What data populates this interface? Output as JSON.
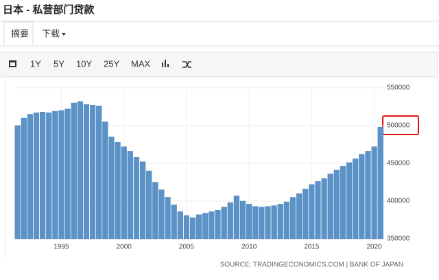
{
  "header": {
    "title": "日本 - 私营部门贷款"
  },
  "tabs": [
    "摘要",
    "下载"
  ],
  "toolbar": [
    "1Y",
    "5Y",
    "10Y",
    "25Y",
    "MAX"
  ],
  "source": "SOURCE: TRADINGECONOMICS.COM | BANK OF JAPAN",
  "chart_data": {
    "type": "bar",
    "color": "#5b93c9",
    "grid": true,
    "x": [
      1991.5,
      1992,
      1992.5,
      1993,
      1993.5,
      1994,
      1994.5,
      1995,
      1995.5,
      1996,
      1996.5,
      1997,
      1997.5,
      1998,
      1998.5,
      1999,
      1999.5,
      2000,
      2000.5,
      2001,
      2001.5,
      2002,
      2002.5,
      2003,
      2003.5,
      2004,
      2004.5,
      2005,
      2005.5,
      2006,
      2006.5,
      2007,
      2007.5,
      2008,
      2008.5,
      2009,
      2009.5,
      2010,
      2010.5,
      2011,
      2011.5,
      2012,
      2012.5,
      2013,
      2013.5,
      2014,
      2014.5,
      2015,
      2015.5,
      2016,
      2016.5,
      2017,
      2017.5,
      2018,
      2018.5,
      2019,
      2019.5,
      2020,
      2020.5
    ],
    "values": [
      500000,
      510000,
      515000,
      517000,
      518000,
      517000,
      519000,
      520000,
      522000,
      530000,
      532000,
      528000,
      527000,
      526000,
      505000,
      485000,
      478000,
      472000,
      466000,
      458000,
      452000,
      440000,
      425000,
      415000,
      405000,
      395000,
      386000,
      381000,
      378000,
      382000,
      384000,
      386000,
      388000,
      392000,
      398000,
      407000,
      400000,
      396000,
      393000,
      392000,
      393000,
      394000,
      396000,
      399000,
      405000,
      410000,
      416000,
      422000,
      426000,
      430000,
      436000,
      441000,
      446000,
      451000,
      456000,
      462000,
      466000,
      472000,
      498000
    ],
    "xlim": [
      1991.3,
      2020.9
    ],
    "xticks": [
      1995,
      2000,
      2005,
      2010,
      2015,
      2020
    ],
    "ylim": [
      350000,
      550000
    ],
    "yticks": [
      350000,
      400000,
      450000,
      500000,
      550000
    ]
  }
}
